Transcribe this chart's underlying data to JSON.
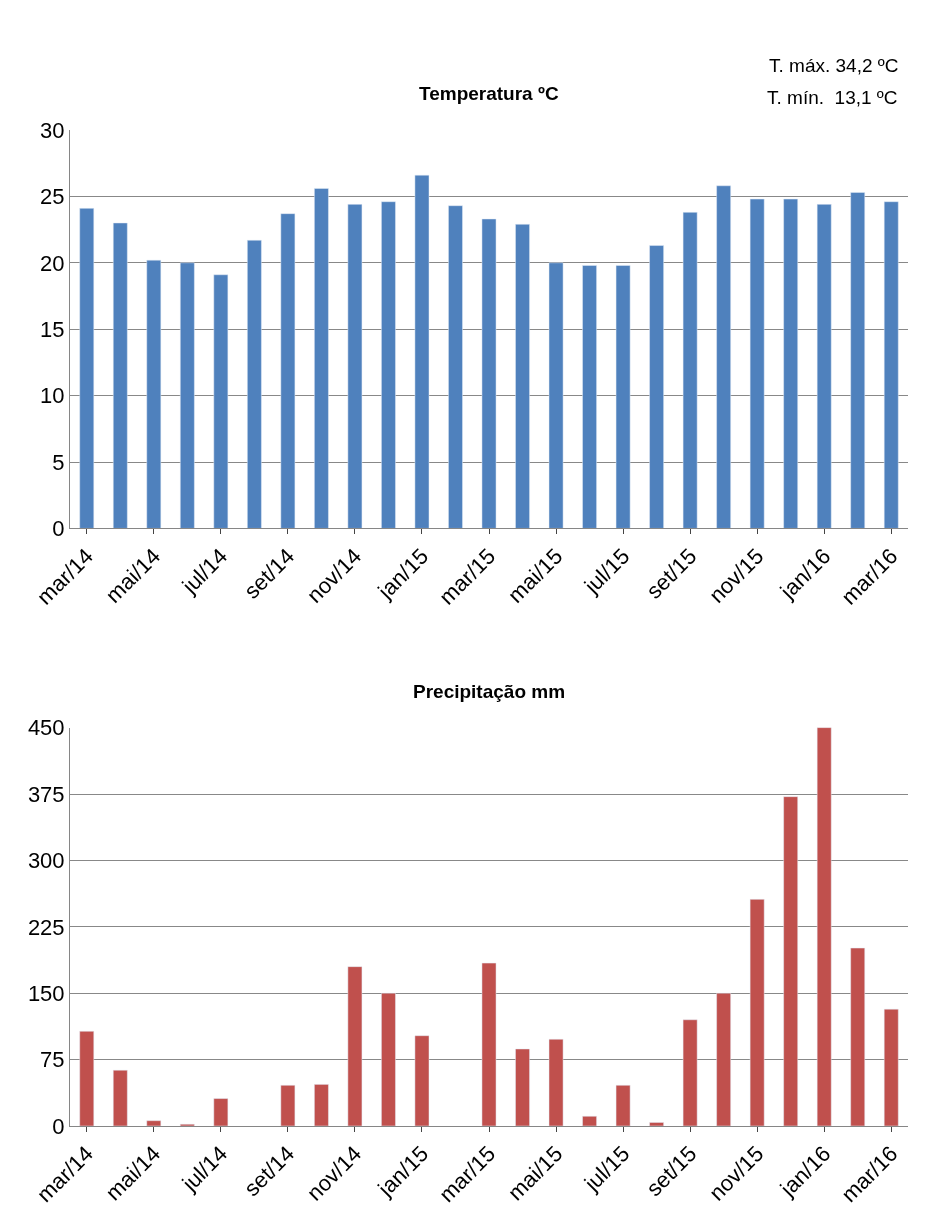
{
  "chart_data": [
    {
      "type": "bar",
      "title": "Temperatura ºC",
      "annotations": [
        "T. máx. 34,2 ºC",
        "T. mín.  13,1 ºC"
      ],
      "categories": [
        "mar/14",
        null,
        "mai/14",
        null,
        "jul/14",
        null,
        "set/14",
        null,
        "nov/14",
        null,
        "jan/15",
        null,
        "mar/15",
        null,
        "mai/15",
        null,
        "jul/15",
        null,
        "set/15",
        null,
        "nov/15",
        null,
        "jan/16",
        null,
        "mar/16"
      ],
      "values": [
        24.1,
        23.0,
        20.2,
        20.0,
        19.1,
        21.7,
        23.7,
        25.6,
        24.4,
        24.6,
        26.6,
        24.3,
        23.3,
        22.9,
        20.0,
        19.8,
        19.8,
        21.3,
        23.8,
        25.8,
        24.8,
        24.8,
        24.4,
        25.3,
        24.6
      ],
      "color": "#4f81bd",
      "ylim": [
        0,
        30
      ],
      "yticks": [
        0,
        5,
        10,
        15,
        20,
        25,
        30
      ],
      "grid": "y"
    },
    {
      "type": "bar",
      "title": "Precipitação mm",
      "categories": [
        "mar/14",
        null,
        "mai/14",
        null,
        "jul/14",
        null,
        "set/14",
        null,
        "nov/14",
        null,
        "jan/15",
        null,
        "mar/15",
        null,
        "mai/15",
        null,
        "jul/15",
        null,
        "set/15",
        null,
        "nov/15",
        null,
        "jan/16",
        null,
        "mar/16"
      ],
      "values": [
        107,
        63,
        6,
        2,
        31,
        null,
        46,
        47,
        180,
        150,
        102,
        null,
        184,
        87,
        98,
        11,
        46,
        4,
        120,
        150,
        256,
        372,
        450,
        201,
        132
      ],
      "color": "#c0504d",
      "ylim": [
        0,
        450
      ],
      "yticks": [
        0,
        75,
        150,
        225,
        300,
        375,
        450
      ],
      "grid": "y"
    }
  ]
}
